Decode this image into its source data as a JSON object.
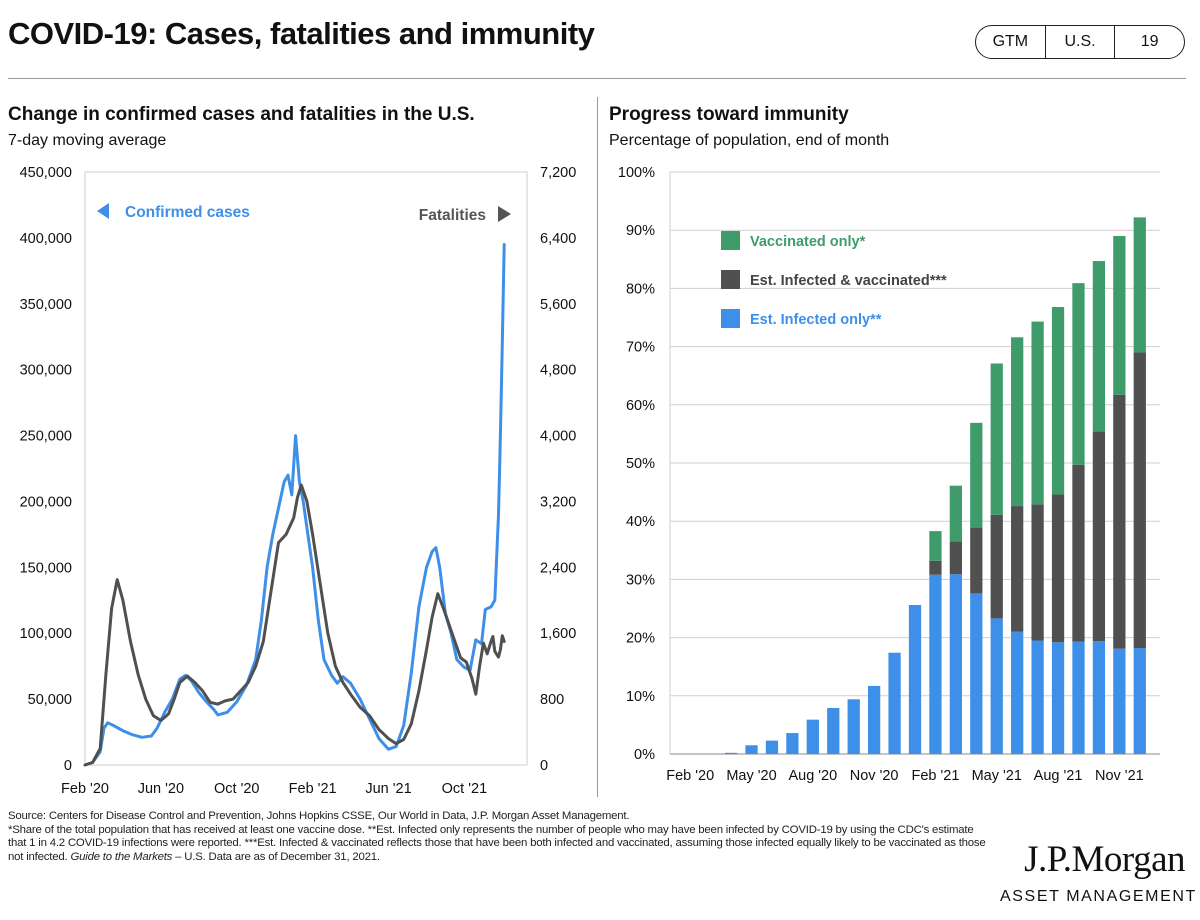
{
  "page": {
    "title": "COVID-19: Cases, fatalities and immunity",
    "badges": [
      "GTM",
      "U.S.",
      "19"
    ]
  },
  "colors": {
    "blue": "#3d8fe8",
    "gray": "#505050",
    "green": "#3f9b6a",
    "grid": "#cfcfcf",
    "axis": "#9a9a9a"
  },
  "chart_data": [
    {
      "type": "line",
      "title": "Change in confirmed cases and fatalities in the U.S.",
      "subtitle": "7-day moving average",
      "x_ticks": [
        "Feb '20",
        "Jun '20",
        "Oct '20",
        "Feb '21",
        "Jun '21",
        "Oct '21"
      ],
      "x_tick_index": [
        0,
        4,
        8,
        12,
        16,
        20
      ],
      "x_range": [
        0,
        23.3
      ],
      "y_left": {
        "range": [
          0,
          450000
        ],
        "ticks": [
          "450,000",
          "400,000",
          "350,000",
          "300,000",
          "250,000",
          "200,000",
          "150,000",
          "100,000",
          "50,000",
          "0"
        ]
      },
      "y_right": {
        "range": [
          0,
          7200
        ],
        "ticks": [
          "7,200",
          "6,400",
          "5,600",
          "4,800",
          "4,000",
          "3,200",
          "2,400",
          "1,600",
          "800",
          "0"
        ]
      },
      "annotations": {
        "cases": "Confirmed cases",
        "fatalities": "Fatalities"
      },
      "series": [
        {
          "name": "Confirmed cases",
          "axis": "left",
          "points": [
            [
              0,
              0
            ],
            [
              0.4,
              2000
            ],
            [
              0.8,
              10000
            ],
            [
              1.0,
              28000
            ],
            [
              1.2,
              32000
            ],
            [
              1.5,
              30000
            ],
            [
              2,
              26000
            ],
            [
              2.5,
              23000
            ],
            [
              3,
              21000
            ],
            [
              3.5,
              22000
            ],
            [
              3.8,
              28000
            ],
            [
              4.2,
              40000
            ],
            [
              4.6,
              50000
            ],
            [
              5,
              65000
            ],
            [
              5.3,
              68000
            ],
            [
              5.6,
              64000
            ],
            [
              6,
              55000
            ],
            [
              6.4,
              48000
            ],
            [
              6.8,
              42000
            ],
            [
              7,
              38000
            ],
            [
              7.5,
              40000
            ],
            [
              8,
              48000
            ],
            [
              8.5,
              60000
            ],
            [
              9,
              80000
            ],
            [
              9.3,
              110000
            ],
            [
              9.6,
              150000
            ],
            [
              9.9,
              175000
            ],
            [
              10.2,
              195000
            ],
            [
              10.5,
              215000
            ],
            [
              10.7,
              220000
            ],
            [
              10.9,
              205000
            ],
            [
              11.1,
              250000
            ],
            [
              11.3,
              215000
            ],
            [
              11.5,
              200000
            ],
            [
              11.7,
              180000
            ],
            [
              12,
              150000
            ],
            [
              12.3,
              110000
            ],
            [
              12.6,
              80000
            ],
            [
              13,
              68000
            ],
            [
              13.3,
              62000
            ],
            [
              13.6,
              67000
            ],
            [
              14,
              62000
            ],
            [
              14.5,
              50000
            ],
            [
              15,
              35000
            ],
            [
              15.5,
              20000
            ],
            [
              16,
              12000
            ],
            [
              16.4,
              14000
            ],
            [
              16.8,
              30000
            ],
            [
              17.2,
              70000
            ],
            [
              17.6,
              120000
            ],
            [
              18,
              150000
            ],
            [
              18.3,
              162000
            ],
            [
              18.5,
              165000
            ],
            [
              18.7,
              150000
            ],
            [
              19,
              115000
            ],
            [
              19.3,
              100000
            ],
            [
              19.6,
              80000
            ],
            [
              20,
              74000
            ],
            [
              20.3,
              72000
            ],
            [
              20.6,
              95000
            ],
            [
              20.9,
              92000
            ],
            [
              21.1,
              118000
            ],
            [
              21.4,
              120000
            ],
            [
              21.6,
              125000
            ],
            [
              21.8,
              190000
            ],
            [
              21.9,
              250000
            ],
            [
              22.0,
              320000
            ],
            [
              22.1,
              395000
            ]
          ]
        },
        {
          "name": "Fatalities",
          "axis": "right",
          "points": [
            [
              0,
              0
            ],
            [
              0.4,
              30
            ],
            [
              0.8,
              200
            ],
            [
              1.1,
              1100
            ],
            [
              1.4,
              1900
            ],
            [
              1.7,
              2250
            ],
            [
              2,
              2000
            ],
            [
              2.4,
              1500
            ],
            [
              2.8,
              1100
            ],
            [
              3.2,
              800
            ],
            [
              3.6,
              600
            ],
            [
              4,
              540
            ],
            [
              4.4,
              620
            ],
            [
              4.7,
              800
            ],
            [
              5,
              1000
            ],
            [
              5.4,
              1080
            ],
            [
              5.8,
              1000
            ],
            [
              6.2,
              900
            ],
            [
              6.6,
              760
            ],
            [
              7,
              740
            ],
            [
              7.4,
              780
            ],
            [
              7.8,
              800
            ],
            [
              8.2,
              900
            ],
            [
              8.6,
              1000
            ],
            [
              9,
              1200
            ],
            [
              9.4,
              1500
            ],
            [
              9.8,
              2100
            ],
            [
              10.2,
              2700
            ],
            [
              10.6,
              2800
            ],
            [
              11,
              3000
            ],
            [
              11.2,
              3250
            ],
            [
              11.4,
              3400
            ],
            [
              11.7,
              3200
            ],
            [
              12,
              2800
            ],
            [
              12.4,
              2200
            ],
            [
              12.8,
              1600
            ],
            [
              13.2,
              1200
            ],
            [
              13.6,
              1000
            ],
            [
              14,
              860
            ],
            [
              14.5,
              700
            ],
            [
              15,
              600
            ],
            [
              15.5,
              430
            ],
            [
              16,
              320
            ],
            [
              16.4,
              260
            ],
            [
              16.8,
              310
            ],
            [
              17.2,
              500
            ],
            [
              17.6,
              900
            ],
            [
              18,
              1400
            ],
            [
              18.3,
              1800
            ],
            [
              18.6,
              2080
            ],
            [
              18.9,
              1900
            ],
            [
              19.2,
              1700
            ],
            [
              19.5,
              1500
            ],
            [
              19.8,
              1300
            ],
            [
              20.1,
              1250
            ],
            [
              20.4,
              1050
            ],
            [
              20.6,
              860
            ],
            [
              20.8,
              1200
            ],
            [
              21,
              1480
            ],
            [
              21.2,
              1350
            ],
            [
              21.4,
              1500
            ],
            [
              21.5,
              1560
            ],
            [
              21.6,
              1380
            ],
            [
              21.8,
              1310
            ],
            [
              21.9,
              1400
            ],
            [
              22.0,
              1570
            ],
            [
              22.1,
              1500
            ]
          ]
        }
      ]
    },
    {
      "type": "bar",
      "stacked": true,
      "title": "Progress toward immunity",
      "subtitle": "Percentage of population, end of month",
      "categories": [
        "Feb '20",
        "Mar '20",
        "Apr '20",
        "May '20",
        "Jun '20",
        "Jul '20",
        "Aug '20",
        "Sep '20",
        "Oct '20",
        "Nov '20",
        "Dec '20",
        "Jan '21",
        "Feb '21",
        "Mar '21",
        "Apr '21",
        "May '21",
        "Jun '21",
        "Jul '21",
        "Aug '21",
        "Sep '21",
        "Oct '21",
        "Nov '21",
        "Dec '21"
      ],
      "x_tick_labels": [
        "Feb '20",
        "May '20",
        "Aug '20",
        "Nov '20",
        "Feb '21",
        "May '21",
        "Aug '21",
        "Nov '21"
      ],
      "x_tick_index": [
        0,
        3,
        6,
        9,
        12,
        15,
        18,
        21
      ],
      "y_ticks": [
        "100%",
        "90%",
        "80%",
        "70%",
        "60%",
        "50%",
        "40%",
        "30%",
        "20%",
        "10%",
        "0%"
      ],
      "ylim": [
        0,
        100
      ],
      "legend": [
        "Vaccinated only*",
        "Est. Infected & vaccinated***",
        "Est. Infected only**"
      ],
      "series": [
        {
          "name": "Est. Infected only**",
          "color": "blue",
          "values": [
            0,
            0,
            0.2,
            1.5,
            2.3,
            3.6,
            5.9,
            7.9,
            9.4,
            11.7,
            17.4,
            25.6,
            30.8,
            30.9,
            27.6,
            23.3,
            21,
            19.5,
            19.2,
            19.3,
            19.4,
            18.1,
            18.2
          ]
        },
        {
          "name": "Est. Infected & vaccinated***",
          "color": "gray",
          "values": [
            0,
            0,
            0,
            0,
            0,
            0,
            0,
            0,
            0,
            0,
            0,
            0,
            2.4,
            5.6,
            11.3,
            17.8,
            21.6,
            23.4,
            25.4,
            30.4,
            36,
            43.6,
            50.8
          ]
        },
        {
          "name": "Vaccinated only*",
          "color": "green",
          "values": [
            0,
            0,
            0,
            0,
            0,
            0,
            0,
            0,
            0,
            0,
            0,
            0,
            5.1,
            9.6,
            18,
            26,
            29,
            31.4,
            32.2,
            31.2,
            29.3,
            27.3,
            23.2
          ]
        }
      ]
    }
  ],
  "footer": {
    "source_line": "Source: Centers for Disease Control and Prevention, Johns Hopkins CSSE, Our World in Data, J.P. Morgan Asset Management.",
    "note_main": "*Share of the total population that has received at least one vaccine dose. **Est. Infected only represents the number of people who may have been infected by COVID-19 by using the CDC's estimate that 1 in 4.2 COVID-19 infections were reported. ***Est. Infected & vaccinated reflects those that have been both infected and vaccinated, assuming those infected equally likely to be vaccinated as those not infected.",
    "note_guide": "Guide to the Markets",
    "note_end": " – U.S. Data are as of December 31, 2021.",
    "logo": "J.P.Morgan",
    "logo_sub": "ASSET MANAGEMENT"
  }
}
